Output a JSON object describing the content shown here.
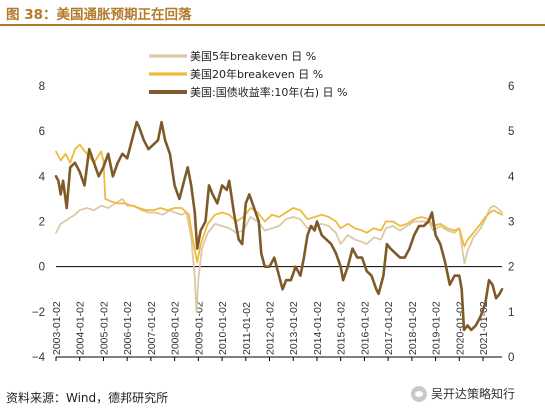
{
  "header": {
    "title": "图 38：美国通胀预期正在回落",
    "accent_color": "#b37a2c"
  },
  "footer": {
    "source": "资料来源：Wind，德邦研究所",
    "watermark": "吴开达策略知行",
    "watermark_icon": "wechat-icon"
  },
  "chart_data": {
    "type": "line",
    "grid": false,
    "legend_position": "top-center",
    "left_axis": {
      "min": -4,
      "max": 8,
      "ticks": [
        -4,
        -2,
        0,
        2,
        4,
        6,
        8
      ],
      "tick_labels": [
        "−4",
        "−2",
        "0",
        "2",
        "4",
        "6",
        "8"
      ]
    },
    "right_axis": {
      "min": 0,
      "max": 6,
      "ticks": [
        0,
        1,
        2,
        3,
        4,
        5,
        6
      ],
      "tick_labels": [
        "0",
        "1",
        "2",
        "3",
        "4",
        "5",
        "6"
      ]
    },
    "x_axis": {
      "start": 2003.0,
      "end": 2021.8,
      "ticks": [
        2003,
        2004,
        2005,
        2006,
        2007,
        2008,
        2009,
        2010,
        2011,
        2012,
        2013,
        2014,
        2015,
        2016,
        2017,
        2018,
        2019,
        2020,
        2021
      ],
      "tick_labels": [
        "2003-01-02",
        "2004-01-02",
        "2005-01-02",
        "2006-01-02",
        "2007-01-02",
        "2008-01-02",
        "2009-01-02",
        "2010-01-02",
        "2011-01-02",
        "2012-01-02",
        "2013-01-02",
        "2014-01-02",
        "2015-01-02",
        "2016-01-02",
        "2017-01-02",
        "2018-01-02",
        "2019-01-02",
        "2020-01-02",
        "2021-01-02"
      ]
    },
    "series": [
      {
        "name": "美国5年breakeven  日  %",
        "axis": "left",
        "color": "#dcc9a4",
        "width": 1.8,
        "points": [
          [
            2003.0,
            1.5
          ],
          [
            2003.2,
            1.9
          ],
          [
            2003.5,
            2.1
          ],
          [
            2003.8,
            2.3
          ],
          [
            2004.0,
            2.5
          ],
          [
            2004.3,
            2.6
          ],
          [
            2004.6,
            2.5
          ],
          [
            2004.9,
            2.7
          ],
          [
            2005.2,
            2.6
          ],
          [
            2005.5,
            2.8
          ],
          [
            2005.8,
            3.0
          ],
          [
            2006.0,
            2.7
          ],
          [
            2006.3,
            2.7
          ],
          [
            2006.6,
            2.5
          ],
          [
            2006.9,
            2.4
          ],
          [
            2007.2,
            2.4
          ],
          [
            2007.5,
            2.3
          ],
          [
            2007.8,
            2.5
          ],
          [
            2008.0,
            2.4
          ],
          [
            2008.3,
            2.3
          ],
          [
            2008.5,
            2.4
          ],
          [
            2008.7,
            1.3
          ],
          [
            2008.85,
            -0.5
          ],
          [
            2008.92,
            -2.0
          ],
          [
            2009.0,
            -0.6
          ],
          [
            2009.15,
            0.8
          ],
          [
            2009.4,
            1.5
          ],
          [
            2009.7,
            1.9
          ],
          [
            2010.0,
            1.8
          ],
          [
            2010.3,
            1.7
          ],
          [
            2010.6,
            1.5
          ],
          [
            2010.9,
            1.6
          ],
          [
            2011.2,
            2.2
          ],
          [
            2011.5,
            2.0
          ],
          [
            2011.8,
            1.6
          ],
          [
            2012.1,
            1.7
          ],
          [
            2012.4,
            1.8
          ],
          [
            2012.7,
            2.1
          ],
          [
            2013.0,
            2.2
          ],
          [
            2013.3,
            2.1
          ],
          [
            2013.6,
            1.7
          ],
          [
            2013.9,
            1.8
          ],
          [
            2014.2,
            1.9
          ],
          [
            2014.5,
            1.8
          ],
          [
            2014.8,
            1.5
          ],
          [
            2015.0,
            1.0
          ],
          [
            2015.3,
            1.4
          ],
          [
            2015.6,
            1.2
          ],
          [
            2015.9,
            1.1
          ],
          [
            2016.1,
            1.0
          ],
          [
            2016.4,
            1.3
          ],
          [
            2016.7,
            1.2
          ],
          [
            2016.9,
            1.7
          ],
          [
            2017.2,
            1.8
          ],
          [
            2017.5,
            1.6
          ],
          [
            2017.8,
            1.8
          ],
          [
            2018.1,
            2.0
          ],
          [
            2018.4,
            2.0
          ],
          [
            2018.7,
            2.0
          ],
          [
            2018.9,
            1.6
          ],
          [
            2019.2,
            1.8
          ],
          [
            2019.5,
            1.6
          ],
          [
            2019.8,
            1.5
          ],
          [
            2020.0,
            1.7
          ],
          [
            2020.15,
            0.6
          ],
          [
            2020.22,
            0.15
          ],
          [
            2020.35,
            0.7
          ],
          [
            2020.6,
            1.3
          ],
          [
            2020.9,
            1.7
          ],
          [
            2021.1,
            2.1
          ],
          [
            2021.3,
            2.6
          ],
          [
            2021.45,
            2.7
          ],
          [
            2021.6,
            2.6
          ],
          [
            2021.8,
            2.4
          ]
        ]
      },
      {
        "name": "美国20年breakeven  日  %",
        "axis": "left",
        "color": "#efb93c",
        "width": 1.8,
        "points": [
          [
            2003.0,
            5.1
          ],
          [
            2003.2,
            4.7
          ],
          [
            2003.4,
            5.0
          ],
          [
            2003.6,
            4.6
          ],
          [
            2003.8,
            5.2
          ],
          [
            2004.0,
            5.4
          ],
          [
            2004.3,
            5.0
          ],
          [
            2004.6,
            4.6
          ],
          [
            2004.9,
            5.1
          ],
          [
            2005.0,
            4.7
          ],
          [
            2005.08,
            3.0
          ],
          [
            2005.3,
            2.9
          ],
          [
            2005.6,
            2.8
          ],
          [
            2005.9,
            2.8
          ],
          [
            2006.2,
            2.7
          ],
          [
            2006.5,
            2.6
          ],
          [
            2006.8,
            2.5
          ],
          [
            2007.1,
            2.5
          ],
          [
            2007.4,
            2.6
          ],
          [
            2007.7,
            2.5
          ],
          [
            2008.0,
            2.6
          ],
          [
            2008.3,
            2.6
          ],
          [
            2008.6,
            2.3
          ],
          [
            2008.8,
            1.0
          ],
          [
            2008.95,
            0.2
          ],
          [
            2009.1,
            1.0
          ],
          [
            2009.4,
            1.9
          ],
          [
            2009.7,
            2.3
          ],
          [
            2010.0,
            2.4
          ],
          [
            2010.3,
            2.3
          ],
          [
            2010.6,
            2.0
          ],
          [
            2010.9,
            2.2
          ],
          [
            2011.2,
            2.6
          ],
          [
            2011.5,
            2.4
          ],
          [
            2011.8,
            2.0
          ],
          [
            2012.1,
            2.3
          ],
          [
            2012.4,
            2.2
          ],
          [
            2012.7,
            2.4
          ],
          [
            2013.0,
            2.6
          ],
          [
            2013.3,
            2.5
          ],
          [
            2013.6,
            2.1
          ],
          [
            2013.9,
            2.2
          ],
          [
            2014.2,
            2.3
          ],
          [
            2014.5,
            2.2
          ],
          [
            2014.8,
            2.0
          ],
          [
            2015.0,
            1.7
          ],
          [
            2015.3,
            1.9
          ],
          [
            2015.6,
            1.7
          ],
          [
            2015.9,
            1.6
          ],
          [
            2016.1,
            1.5
          ],
          [
            2016.4,
            1.7
          ],
          [
            2016.7,
            1.6
          ],
          [
            2016.9,
            2.0
          ],
          [
            2017.2,
            2.0
          ],
          [
            2017.5,
            1.8
          ],
          [
            2017.8,
            1.9
          ],
          [
            2018.1,
            2.1
          ],
          [
            2018.4,
            2.2
          ],
          [
            2018.7,
            2.1
          ],
          [
            2018.9,
            1.8
          ],
          [
            2019.2,
            1.9
          ],
          [
            2019.5,
            1.7
          ],
          [
            2019.8,
            1.6
          ],
          [
            2020.0,
            1.7
          ],
          [
            2020.15,
            1.1
          ],
          [
            2020.22,
            0.9
          ],
          [
            2020.35,
            1.2
          ],
          [
            2020.6,
            1.5
          ],
          [
            2020.9,
            1.9
          ],
          [
            2021.1,
            2.2
          ],
          [
            2021.3,
            2.4
          ],
          [
            2021.45,
            2.5
          ],
          [
            2021.6,
            2.4
          ],
          [
            2021.8,
            2.3
          ]
        ]
      },
      {
        "name": "美国:国债收益率:10年(右)  日  %",
        "axis": "right",
        "color": "#7e5a2b",
        "width": 2.6,
        "points": [
          [
            2003.0,
            4.0
          ],
          [
            2003.1,
            3.9
          ],
          [
            2003.2,
            3.6
          ],
          [
            2003.3,
            3.9
          ],
          [
            2003.45,
            3.3
          ],
          [
            2003.6,
            4.2
          ],
          [
            2003.8,
            4.3
          ],
          [
            2004.0,
            4.1
          ],
          [
            2004.2,
            3.8
          ],
          [
            2004.4,
            4.6
          ],
          [
            2004.6,
            4.3
          ],
          [
            2004.8,
            4.0
          ],
          [
            2005.0,
            4.2
          ],
          [
            2005.2,
            4.5
          ],
          [
            2005.4,
            4.0
          ],
          [
            2005.6,
            4.3
          ],
          [
            2005.8,
            4.5
          ],
          [
            2006.0,
            4.4
          ],
          [
            2006.2,
            4.8
          ],
          [
            2006.4,
            5.2
          ],
          [
            2006.5,
            5.1
          ],
          [
            2006.7,
            4.8
          ],
          [
            2006.9,
            4.6
          ],
          [
            2007.1,
            4.7
          ],
          [
            2007.3,
            4.8
          ],
          [
            2007.45,
            5.2
          ],
          [
            2007.6,
            4.8
          ],
          [
            2007.8,
            4.5
          ],
          [
            2008.0,
            3.8
          ],
          [
            2008.2,
            3.5
          ],
          [
            2008.4,
            3.9
          ],
          [
            2008.55,
            4.2
          ],
          [
            2008.7,
            3.8
          ],
          [
            2008.85,
            3.2
          ],
          [
            2008.95,
            2.4
          ],
          [
            2009.1,
            2.8
          ],
          [
            2009.3,
            3.0
          ],
          [
            2009.45,
            3.8
          ],
          [
            2009.6,
            3.6
          ],
          [
            2009.8,
            3.4
          ],
          [
            2010.0,
            3.8
          ],
          [
            2010.2,
            3.7
          ],
          [
            2010.3,
            3.9
          ],
          [
            2010.5,
            3.2
          ],
          [
            2010.7,
            2.6
          ],
          [
            2010.85,
            2.5
          ],
          [
            2011.0,
            3.4
          ],
          [
            2011.15,
            3.6
          ],
          [
            2011.35,
            3.3
          ],
          [
            2011.55,
            3.0
          ],
          [
            2011.65,
            2.3
          ],
          [
            2011.8,
            2.0
          ],
          [
            2012.0,
            2.0
          ],
          [
            2012.2,
            2.2
          ],
          [
            2012.4,
            1.8
          ],
          [
            2012.55,
            1.5
          ],
          [
            2012.7,
            1.7
          ],
          [
            2012.9,
            1.7
          ],
          [
            2013.1,
            2.0
          ],
          [
            2013.3,
            1.8
          ],
          [
            2013.45,
            2.2
          ],
          [
            2013.6,
            2.7
          ],
          [
            2013.75,
            2.9
          ],
          [
            2013.9,
            2.8
          ],
          [
            2014.0,
            3.0
          ],
          [
            2014.2,
            2.7
          ],
          [
            2014.4,
            2.6
          ],
          [
            2014.6,
            2.5
          ],
          [
            2014.8,
            2.3
          ],
          [
            2015.0,
            2.0
          ],
          [
            2015.1,
            1.7
          ],
          [
            2015.3,
            2.0
          ],
          [
            2015.5,
            2.4
          ],
          [
            2015.7,
            2.2
          ],
          [
            2015.9,
            2.2
          ],
          [
            2016.1,
            1.9
          ],
          [
            2016.3,
            1.8
          ],
          [
            2016.5,
            1.5
          ],
          [
            2016.6,
            1.4
          ],
          [
            2016.8,
            1.8
          ],
          [
            2016.95,
            2.5
          ],
          [
            2017.1,
            2.4
          ],
          [
            2017.3,
            2.3
          ],
          [
            2017.5,
            2.2
          ],
          [
            2017.7,
            2.2
          ],
          [
            2017.9,
            2.4
          ],
          [
            2018.1,
            2.7
          ],
          [
            2018.3,
            2.9
          ],
          [
            2018.5,
            2.9
          ],
          [
            2018.7,
            3.0
          ],
          [
            2018.85,
            3.2
          ],
          [
            2019.0,
            2.7
          ],
          [
            2019.2,
            2.5
          ],
          [
            2019.4,
            2.1
          ],
          [
            2019.6,
            1.6
          ],
          [
            2019.8,
            1.8
          ],
          [
            2020.0,
            1.8
          ],
          [
            2020.1,
            1.5
          ],
          [
            2020.2,
            0.6
          ],
          [
            2020.35,
            0.7
          ],
          [
            2020.5,
            0.6
          ],
          [
            2020.7,
            0.7
          ],
          [
            2020.9,
            0.9
          ],
          [
            2021.1,
            1.2
          ],
          [
            2021.25,
            1.7
          ],
          [
            2021.4,
            1.6
          ],
          [
            2021.55,
            1.3
          ],
          [
            2021.7,
            1.4
          ],
          [
            2021.8,
            1.5
          ]
        ]
      }
    ]
  }
}
